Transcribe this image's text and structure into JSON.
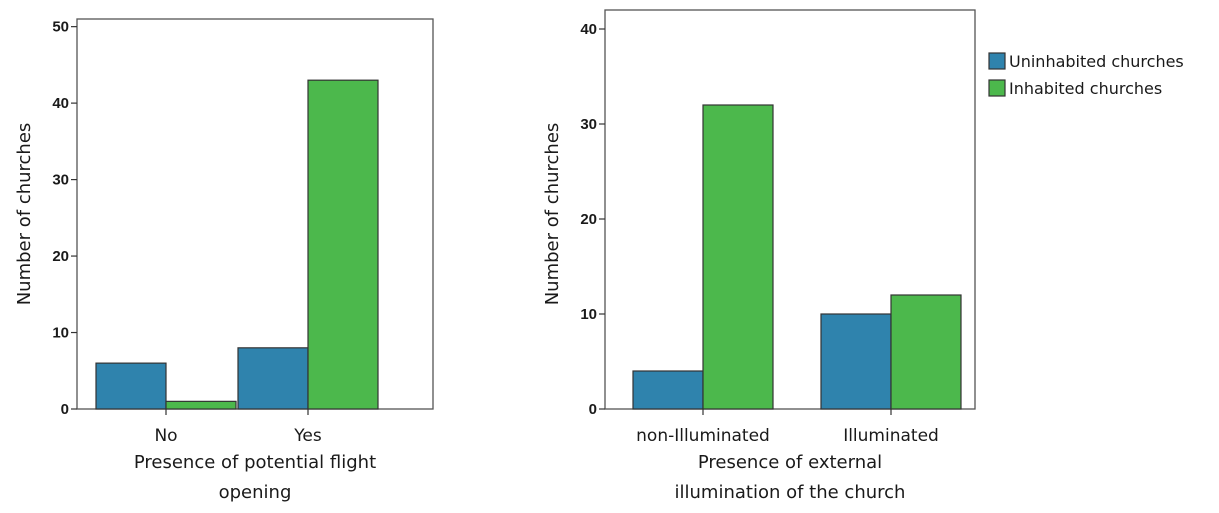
{
  "chart_data": [
    {
      "type": "bar",
      "categories": [
        "No",
        "Yes"
      ],
      "series": [
        {
          "name": "Uninhabited churches",
          "values": [
            6,
            8
          ]
        },
        {
          "name": "Inhabited churches",
          "values": [
            1,
            43
          ]
        }
      ],
      "xlabel": [
        "Presence of potential flight",
        "opening"
      ],
      "ylabel": "Number of churches",
      "ylim": [
        0,
        51
      ],
      "yticks": [
        0,
        10,
        20,
        30,
        40,
        50
      ],
      "grid": false
    },
    {
      "type": "bar",
      "categories": [
        "non-Illuminated",
        "Illuminated"
      ],
      "series": [
        {
          "name": "Uninhabited churches",
          "values": [
            4,
            10
          ]
        },
        {
          "name": "Inhabited churches",
          "values": [
            32,
            12
          ]
        }
      ],
      "xlabel": [
        "Presence of external",
        "illumination of the church"
      ],
      "ylabel": "Number of churches",
      "ylim": [
        0,
        42
      ],
      "yticks": [
        0,
        10,
        20,
        30,
        40
      ],
      "grid": false
    }
  ],
  "legend": {
    "placement": "right",
    "items": [
      {
        "label": "Uninhabited churches",
        "color": "#2f83ad"
      },
      {
        "label": "Inhabited churches",
        "color": "#4cb84c"
      }
    ]
  },
  "colors": {
    "series": [
      "#2f83ad",
      "#4cb84c"
    ]
  }
}
